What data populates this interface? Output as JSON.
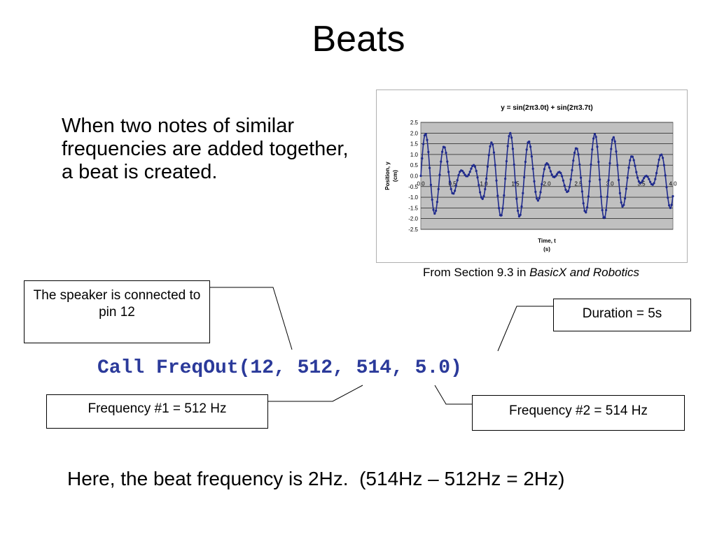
{
  "slide": {
    "title": "Beats",
    "intro": "When two notes of similar frequencies are added together, a beat is created.",
    "caption_prefix": "From Section 9.3 in ",
    "caption_book": "BasicX and Robotics",
    "code": "Call FreqOut(12, 512, 514, 5.0)",
    "beat_text": "Here, the beat frequency is 2Hz.  (514Hz – 512Hz = 2Hz)",
    "colors": {
      "code": "#2b3a9a",
      "series": "#1f2a8c",
      "plot_bg": "#c0c0c0"
    }
  },
  "callouts": {
    "speaker": "The speaker is connected to pin 12",
    "duration": "Duration = 5s",
    "freq1": "Frequency #1 = 512 Hz",
    "freq2": "Frequency #2 = 514 Hz"
  },
  "chart_data": {
    "type": "line",
    "title": "y = sin(2π3.0t) +  sin(2π3.7t)",
    "xlabel": "Time, t\n(s)",
    "ylabel": "Position, y\n(cm)",
    "xlim": [
      0,
      4.0
    ],
    "ylim": [
      -2.5,
      2.5
    ],
    "x_ticks": [
      "0.0",
      "0.5",
      "1.0",
      "1.5",
      "2.0",
      "2.5",
      "3.0",
      "3.5",
      "4.0"
    ],
    "y_ticks": [
      "2.5",
      "2.0",
      "1.5",
      "1.0",
      "0.5",
      "0.0",
      "-0.5",
      "-1.0",
      "-1.5",
      "-2.0",
      "-2.5"
    ],
    "grid": true,
    "series": [
      {
        "f1": 3.0,
        "f2": 3.7,
        "t_start": 0,
        "t_end": 4.0,
        "samples": 400,
        "color": "#1f2a8c"
      }
    ]
  }
}
